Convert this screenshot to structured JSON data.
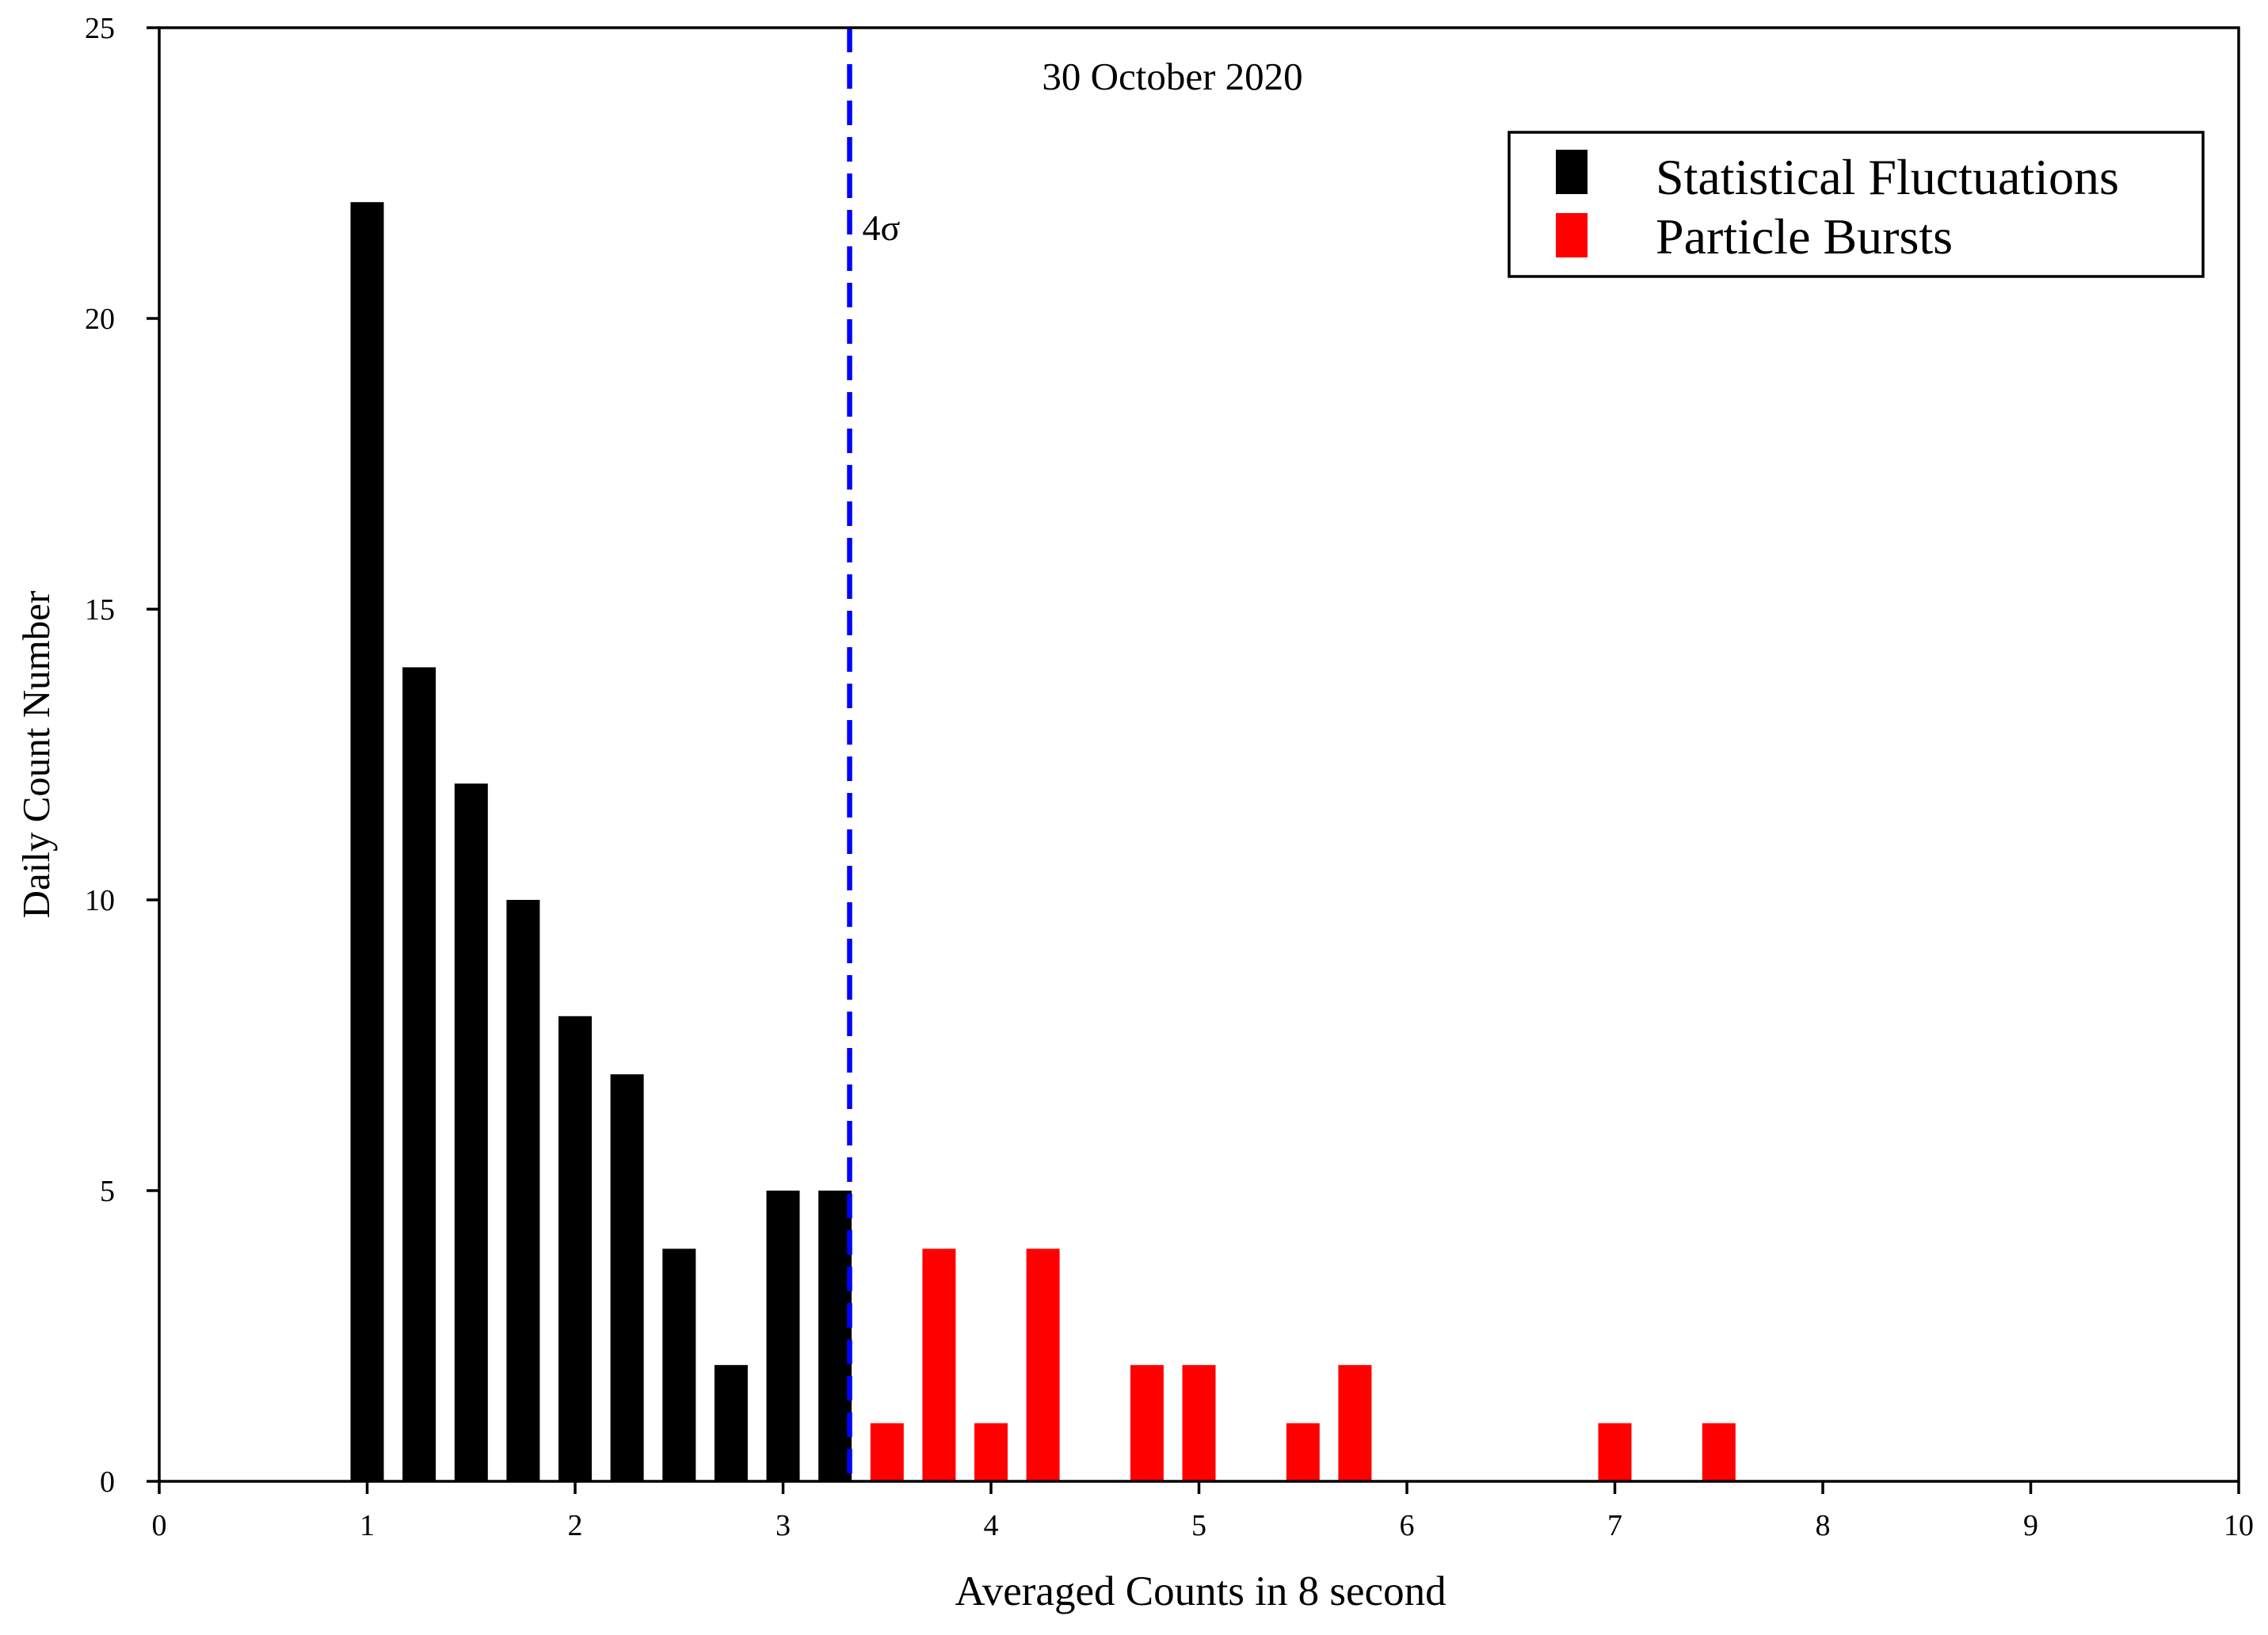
{
  "chart_data": {
    "type": "bar",
    "title": "30 October 2020",
    "xlabel": "Averaged Counts in 8 second",
    "ylabel": "Daily Count Number",
    "xlim": [
      0,
      10
    ],
    "ylim": [
      0,
      25
    ],
    "xticks": [
      "0",
      "1",
      "2",
      "3",
      "4",
      "5",
      "6",
      "7",
      "8",
      "9",
      "10"
    ],
    "yticks": [
      "0",
      "5",
      "10",
      "15",
      "20",
      "25"
    ],
    "bar_width": 0.16,
    "threshold": {
      "x": 3.32,
      "label": "4σ",
      "color": "#0000ff"
    },
    "legend_position": "top-right",
    "series": [
      {
        "name": "Statistical Fluctuations",
        "color": "#000000",
        "x": [
          1.0,
          1.25,
          1.5,
          1.75,
          2.0,
          2.25,
          2.5,
          2.75,
          3.0,
          3.25
        ],
        "values": [
          22,
          14,
          12,
          10,
          8,
          7,
          4,
          2,
          5,
          5
        ]
      },
      {
        "name": "Particle Bursts",
        "color": "#ff0000",
        "x": [
          3.5,
          3.75,
          4.0,
          4.25,
          4.75,
          5.0,
          5.5,
          5.75,
          7.0,
          7.5
        ],
        "values": [
          1,
          4,
          1,
          4,
          2,
          2,
          1,
          2,
          1,
          1
        ]
      }
    ]
  }
}
